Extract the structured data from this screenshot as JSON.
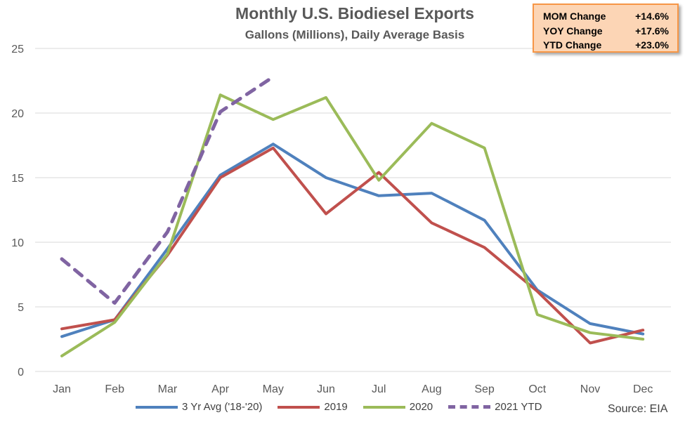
{
  "chart_data": {
    "type": "line",
    "title": "Monthly U.S. Biodiesel Exports",
    "subtitle": "Gallons (Millions), Daily Average Basis",
    "categories": [
      "Jan",
      "Feb",
      "Mar",
      "Apr",
      "May",
      "Jun",
      "Jul",
      "Aug",
      "Sep",
      "Oct",
      "Nov",
      "Dec"
    ],
    "ylim": [
      0,
      25
    ],
    "yticks": [
      0,
      5,
      10,
      15,
      20,
      25
    ],
    "grid": "horizontal",
    "legend_position": "bottom",
    "series": [
      {
        "name": "3 Yr Avg ('18-'20)",
        "color": "#4f81bd",
        "dashed": false,
        "values": [
          2.7,
          4.0,
          9.5,
          15.2,
          17.6,
          15.0,
          13.6,
          13.8,
          11.7,
          6.3,
          3.7,
          2.9
        ]
      },
      {
        "name": "2019",
        "color": "#c0504d",
        "dashed": false,
        "values": [
          3.3,
          4.0,
          9.0,
          15.0,
          17.3,
          12.2,
          15.4,
          11.5,
          9.6,
          6.2,
          2.2,
          3.2
        ]
      },
      {
        "name": "2020",
        "color": "#9bbb59",
        "dashed": false,
        "values": [
          1.2,
          3.8,
          9.1,
          21.4,
          19.5,
          21.2,
          14.8,
          19.2,
          17.3,
          4.4,
          3.0,
          2.5
        ]
      },
      {
        "name": "2021 YTD",
        "color": "#8064a2",
        "dashed": true,
        "values": [
          8.7,
          5.3,
          10.8,
          20.1,
          22.8,
          null,
          null,
          null,
          null,
          null,
          null,
          null
        ]
      }
    ]
  },
  "stats": [
    {
      "label": "MOM Change",
      "value": "+14.6%"
    },
    {
      "label": "YOY Change",
      "value": "+17.6%"
    },
    {
      "label": "YTD Change",
      "value": "+23.0%"
    }
  ],
  "source": "Source: EIA"
}
